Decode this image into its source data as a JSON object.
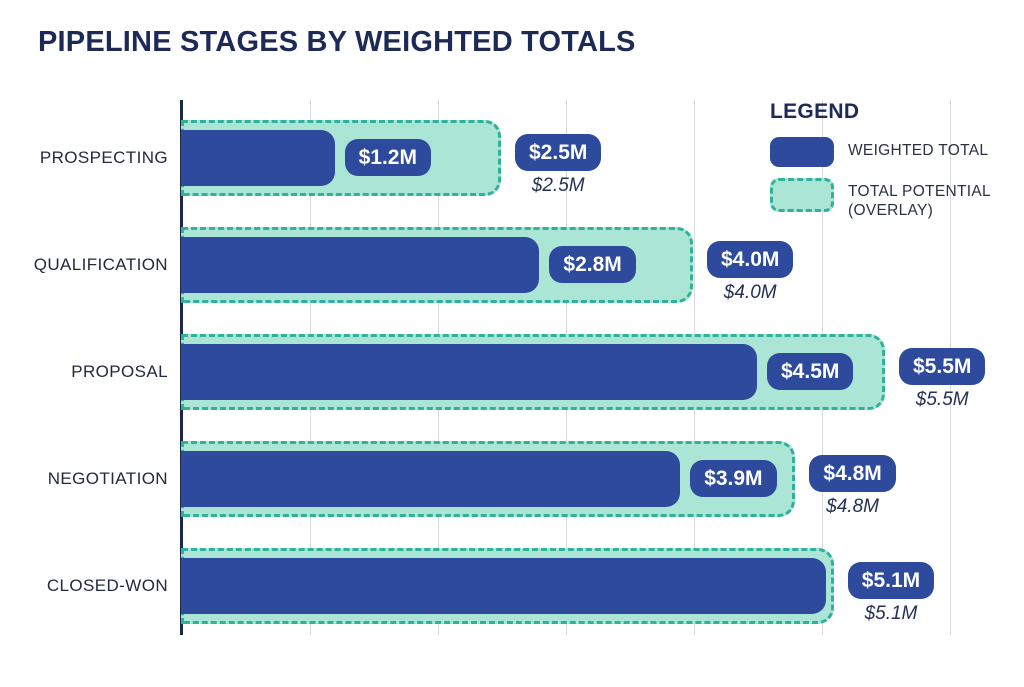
{
  "title": "PIPELINE STAGES BY WEIGHTED TOTALS",
  "legend": {
    "heading": "LEGEND",
    "items": [
      {
        "label": "WEIGHTED TOTAL",
        "swatch": "solid",
        "color": "#2e4a9c"
      },
      {
        "label": "TOTAL POTENTIAL (OVERLAY)",
        "swatch": "dashed",
        "fill": "#abe5d6",
        "border": "#2fb19b"
      }
    ]
  },
  "chart_data": {
    "type": "bar",
    "orientation": "horizontal",
    "title": "PIPELINE STAGES BY WEIGHTED TOTALS",
    "categories": [
      "PROSPECTING",
      "QUALIFICATION",
      "PROPOSAL",
      "NEGOTIATION",
      "CLOSED-WON"
    ],
    "series": [
      {
        "name": "WEIGHTED TOTAL",
        "values": [
          1.2,
          2.8,
          4.5,
          3.9,
          5.1
        ],
        "labels": [
          "$1.2M",
          "$2.8M",
          "$4.5M",
          "$3.9M",
          "$5.1M"
        ],
        "color": "#2e4a9c"
      },
      {
        "name": "TOTAL POTENTIAL (OVERLAY)",
        "values": [
          2.5,
          4.0,
          5.5,
          4.8,
          5.1
        ],
        "labels": [
          "$2.5M",
          "$4.0M",
          "$5.5M",
          "$4.8M",
          "$5.1M"
        ],
        "sub_labels": [
          "$2.5M",
          "$4.0M",
          "$5.5M",
          "$4.8M",
          "$5.1M"
        ],
        "fill": "#abe5d6",
        "border": "#2fb19b"
      }
    ],
    "value_unit": "millions USD",
    "xlabel": "",
    "ylabel": "",
    "xlim": [
      0,
      6
    ],
    "gridline_interval": 1,
    "grid": true,
    "tick_labels_visible": false,
    "legend_position": "top-right"
  },
  "colors": {
    "background": "#ffffff",
    "title": "#1d2a55",
    "axis": "#1c2742",
    "gridline": "#d7d9dc",
    "bar_weighted": "#2e4a9c",
    "overlay_fill": "#abe5d6",
    "overlay_border": "#2fb19b",
    "pill_bg": "#2e4a9c",
    "pill_text": "#ffffff",
    "category_label": "#232a3d",
    "sub_value_text": "#273055"
  }
}
